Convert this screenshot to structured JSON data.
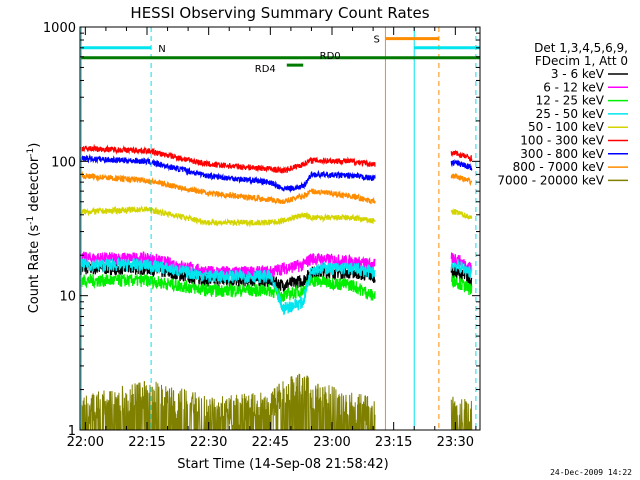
{
  "chart_data": {
    "type": "line",
    "title": "HESSI Observing Summary Count Rates",
    "xlabel": "Start Time (14-Sep-08 21:58:42)",
    "ylabel": "Count Rate (s",
    "ylabel_sup1": "-1",
    "ylabel_mid": " detector",
    "ylabel_sup2": "-1",
    "ylabel_end": ")",
    "yscale": "log",
    "ylim": [
      1,
      1000
    ],
    "xlim": [
      "21:58:42",
      "23:36:00"
    ],
    "x_ticks": [
      "22:00",
      "22:15",
      "22:30",
      "22:45",
      "23:00",
      "23:15",
      "23:30"
    ],
    "y_ticks": [
      "1",
      "10",
      "100",
      "1000"
    ],
    "grid": false,
    "legend_position": "right",
    "legend_header": [
      "Det 1,3,4,5,6,9,",
      "FDecim 1, Att 0"
    ],
    "footer_date": "24-Dec-2009 14:22",
    "annotations": {
      "n_label": "N",
      "s_label": "S",
      "rd0_label": "RD0",
      "rd4_label": "RD4"
    },
    "flag_bars": [
      {
        "label": "N",
        "color": "#00e5ee",
        "start": "21:59",
        "end": "22:16",
        "level": 700
      },
      {
        "label": "N",
        "color": "#00e5ee",
        "start": "23:20",
        "end": "23:36",
        "level": 700
      },
      {
        "label": "S",
        "color": "#ff8c00",
        "start": "23:13",
        "end": "23:26",
        "level": 820
      },
      {
        "label": "RD0",
        "color": "#007a00",
        "start": "21:59",
        "end": "23:36",
        "level": 590
      },
      {
        "label": "RD4",
        "color": "#007a00",
        "start": "22:49",
        "end": "22:53",
        "level": 520
      }
    ],
    "event_lines": [
      {
        "time": "21:59",
        "color": "#00e5ee",
        "style": "solid"
      },
      {
        "time": "22:16",
        "color": "#00e5ee",
        "style": "dashed"
      },
      {
        "time": "23:13",
        "color": "#ff8c00",
        "style": "solid"
      },
      {
        "time": "23:20",
        "color": "#00e5ee",
        "style": "solid"
      },
      {
        "time": "23:26",
        "color": "#ff8c00",
        "style": "dashed"
      },
      {
        "time": "23:35",
        "color": "#00e5ee",
        "style": "dashed"
      }
    ],
    "series": [
      {
        "name": "3 - 6 keV",
        "color": "#000000",
        "points": [
          [
            "21:59",
            16
          ],
          [
            "22:15",
            16
          ],
          [
            "22:30",
            13
          ],
          [
            "22:45",
            13
          ],
          [
            "22:48",
            12
          ],
          [
            "22:53",
            13
          ],
          [
            "22:55",
            15
          ],
          [
            "23:05",
            15
          ],
          [
            "23:10",
            14
          ],
          [
            "23:30",
            15
          ],
          [
            "23:34",
            13
          ]
        ]
      },
      {
        "name": "6 - 12 keV",
        "color": "#ff00ff",
        "points": [
          [
            "21:59",
            19
          ],
          [
            "22:15",
            19
          ],
          [
            "22:30",
            15
          ],
          [
            "22:45",
            15
          ],
          [
            "22:48",
            16
          ],
          [
            "22:53",
            17
          ],
          [
            "22:55",
            19
          ],
          [
            "23:05",
            18
          ],
          [
            "23:10",
            17
          ],
          [
            "23:30",
            19
          ],
          [
            "23:34",
            16
          ]
        ]
      },
      {
        "name": "12 - 25 keV",
        "color": "#00ee00",
        "points": [
          [
            "21:59",
            13
          ],
          [
            "22:15",
            13
          ],
          [
            "22:30",
            11
          ],
          [
            "22:45",
            11
          ],
          [
            "22:48",
            10
          ],
          [
            "22:53",
            11
          ],
          [
            "22:55",
            13
          ],
          [
            "23:05",
            12
          ],
          [
            "23:10",
            10
          ],
          [
            "23:30",
            13
          ],
          [
            "23:34",
            11
          ]
        ]
      },
      {
        "name": "25 - 50 keV",
        "color": "#00e5ee",
        "points": [
          [
            "21:59",
            17
          ],
          [
            "22:15",
            17
          ],
          [
            "22:30",
            14
          ],
          [
            "22:45",
            14
          ],
          [
            "22:48",
            8
          ],
          [
            "22:53",
            9
          ],
          [
            "22:55",
            16
          ],
          [
            "23:05",
            16
          ],
          [
            "23:10",
            15
          ],
          [
            "23:30",
            17
          ],
          [
            "23:34",
            15
          ]
        ]
      },
      {
        "name": "50 - 100 keV",
        "color": "#d4d400",
        "points": [
          [
            "21:59",
            42
          ],
          [
            "22:15",
            44
          ],
          [
            "22:30",
            35
          ],
          [
            "22:45",
            35
          ],
          [
            "22:48",
            36
          ],
          [
            "22:53",
            40
          ],
          [
            "22:55",
            38
          ],
          [
            "23:05",
            38
          ],
          [
            "23:10",
            36
          ],
          [
            "23:30",
            42
          ],
          [
            "23:34",
            38
          ]
        ]
      },
      {
        "name": "100 - 300 keV",
        "color": "#ff0000",
        "points": [
          [
            "21:59",
            125
          ],
          [
            "22:15",
            120
          ],
          [
            "22:30",
            95
          ],
          [
            "22:45",
            88
          ],
          [
            "22:48",
            85
          ],
          [
            "22:53",
            95
          ],
          [
            "22:55",
            102
          ],
          [
            "23:05",
            100
          ],
          [
            "23:10",
            95
          ],
          [
            "23:30",
            115
          ],
          [
            "23:34",
            105
          ]
        ]
      },
      {
        "name": "300 - 800 keV",
        "color": "#0000ff",
        "points": [
          [
            "21:59",
            105
          ],
          [
            "22:15",
            100
          ],
          [
            "22:30",
            78
          ],
          [
            "22:45",
            70
          ],
          [
            "22:48",
            62
          ],
          [
            "22:53",
            65
          ],
          [
            "22:55",
            80
          ],
          [
            "23:05",
            78
          ],
          [
            "23:10",
            75
          ],
          [
            "23:30",
            98
          ],
          [
            "23:34",
            90
          ]
        ]
      },
      {
        "name": "800 - 7000 keV",
        "color": "#ff8c00",
        "points": [
          [
            "21:59",
            78
          ],
          [
            "22:15",
            72
          ],
          [
            "22:30",
            58
          ],
          [
            "22:45",
            52
          ],
          [
            "22:48",
            50
          ],
          [
            "22:53",
            55
          ],
          [
            "22:55",
            60
          ],
          [
            "23:05",
            55
          ],
          [
            "23:10",
            50
          ],
          [
            "23:30",
            78
          ],
          [
            "23:34",
            70
          ]
        ]
      },
      {
        "name": "7000 - 20000 keV",
        "color": "#808000",
        "points": [
          [
            "21:59",
            1.5
          ],
          [
            "22:15",
            2.0
          ],
          [
            "22:30",
            1.5
          ],
          [
            "22:45",
            1.6
          ],
          [
            "22:48",
            2.0
          ],
          [
            "22:53",
            2.3
          ],
          [
            "22:55",
            2.0
          ],
          [
            "23:05",
            1.6
          ],
          [
            "23:10",
            1.5
          ],
          [
            "23:30",
            1.5
          ],
          [
            "23:34",
            1.5
          ]
        ]
      }
    ]
  }
}
